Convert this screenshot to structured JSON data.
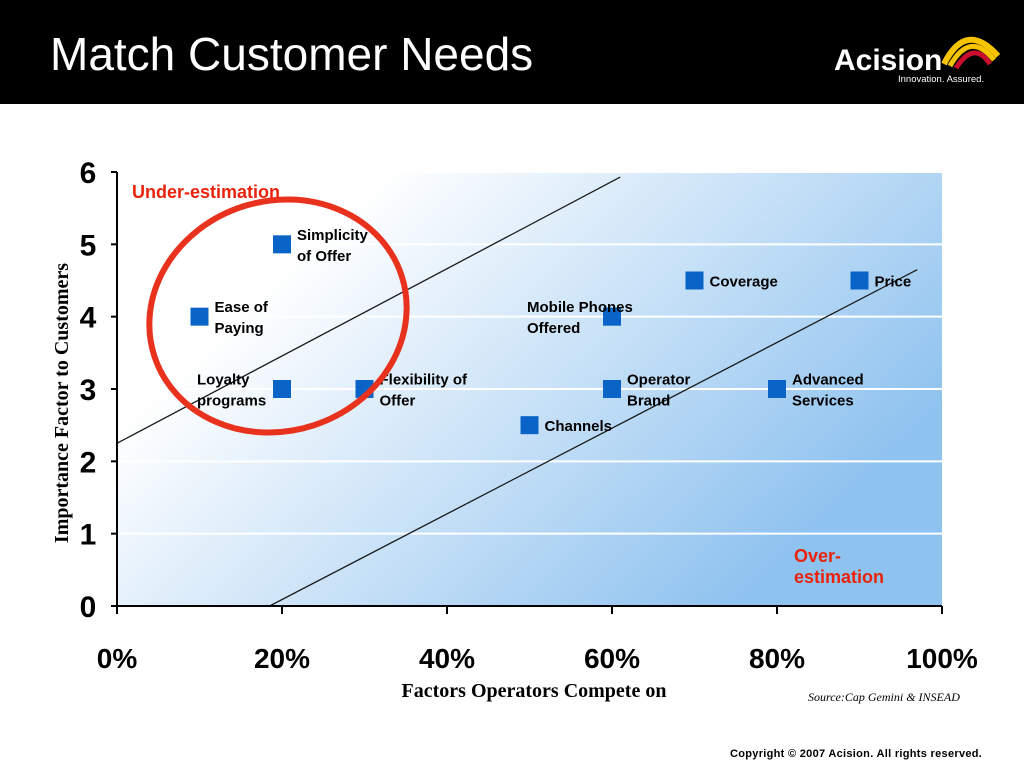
{
  "slide": {
    "title": "Match Customer Needs",
    "logo": {
      "name": "Acision",
      "tagline": "Innovation. Assured."
    },
    "source": "Source:Cap Gemini & INSEAD",
    "copyright": "Copyright © 2007 Acision. All rights reserved."
  },
  "colors": {
    "header_bg": "#000000",
    "marker": "#0a64c8",
    "highlight_ring": "#e8321e",
    "region_label": "#e8230a",
    "plot_gradient_light": "#ffffff",
    "plot_gradient_dark": "#8ec2ef",
    "logo_arc_yellow": "#f6c400",
    "logo_arc_red": "#c8102e"
  },
  "chart_data": {
    "type": "scatter",
    "xlabel": "Factors Operators Compete on",
    "ylabel": "Importance Factor to Customers",
    "xlim": [
      0,
      100
    ],
    "ylim": [
      0,
      6
    ],
    "x_ticks": [
      "0%",
      "20%",
      "40%",
      "60%",
      "80%",
      "100%"
    ],
    "x_tick_values": [
      0,
      20,
      40,
      60,
      80,
      100
    ],
    "y_ticks": [
      "0",
      "1",
      "2",
      "3",
      "4",
      "5",
      "6"
    ],
    "y_tick_values": [
      0,
      1,
      2,
      3,
      4,
      5,
      6
    ],
    "grid": "horizontal",
    "points": [
      {
        "label": "Simplicity of Offer",
        "lines": [
          "Simplicity",
          "of Offer"
        ],
        "x": 20,
        "y": 5,
        "label_side": "right"
      },
      {
        "label": "Ease of Paying",
        "lines": [
          "Ease of",
          "Paying"
        ],
        "x": 10,
        "y": 4,
        "label_side": "right"
      },
      {
        "label": "Loyalty programs",
        "lines": [
          "Loyalty",
          "programs"
        ],
        "x": 20,
        "y": 3,
        "label_side": "left"
      },
      {
        "label": "Flexibility of Offer",
        "lines": [
          "Flexibility of",
          "Offer"
        ],
        "x": 30,
        "y": 3,
        "label_side": "right"
      },
      {
        "label": "Mobile Phones Offered",
        "lines": [
          "Mobile Phones",
          "Offered"
        ],
        "x": 60,
        "y": 4,
        "label_side": "left"
      },
      {
        "label": "Coverage",
        "lines": [
          "Coverage"
        ],
        "x": 70,
        "y": 4.5,
        "label_side": "right"
      },
      {
        "label": "Price",
        "lines": [
          "Price"
        ],
        "x": 90,
        "y": 4.5,
        "label_side": "right"
      },
      {
        "label": "Operator Brand",
        "lines": [
          "Operator",
          "Brand"
        ],
        "x": 60,
        "y": 3,
        "label_side": "right"
      },
      {
        "label": "Channels",
        "lines": [
          "Channels"
        ],
        "x": 50,
        "y": 2.5,
        "label_side": "right"
      },
      {
        "label": "Advanced Services",
        "lines": [
          "Advanced",
          "Services"
        ],
        "x": 80,
        "y": 3,
        "label_side": "right"
      }
    ],
    "trend_lines": [
      {
        "from": [
          0,
          2.25
        ],
        "to": [
          61,
          5.93
        ]
      },
      {
        "from": [
          18.5,
          0
        ],
        "to": [
          97,
          4.65
        ]
      }
    ],
    "regions": [
      {
        "label": "Under-estimation",
        "lines": [
          "Under-estimation"
        ],
        "position": "top-left"
      },
      {
        "label": "Over-estimation",
        "lines": [
          "Over-",
          "estimation"
        ],
        "position": "bottom-right"
      }
    ],
    "highlight": {
      "shape": "ellipse",
      "encloses": [
        "Simplicity of Offer",
        "Ease of Paying",
        "Loyalty programs"
      ]
    }
  }
}
